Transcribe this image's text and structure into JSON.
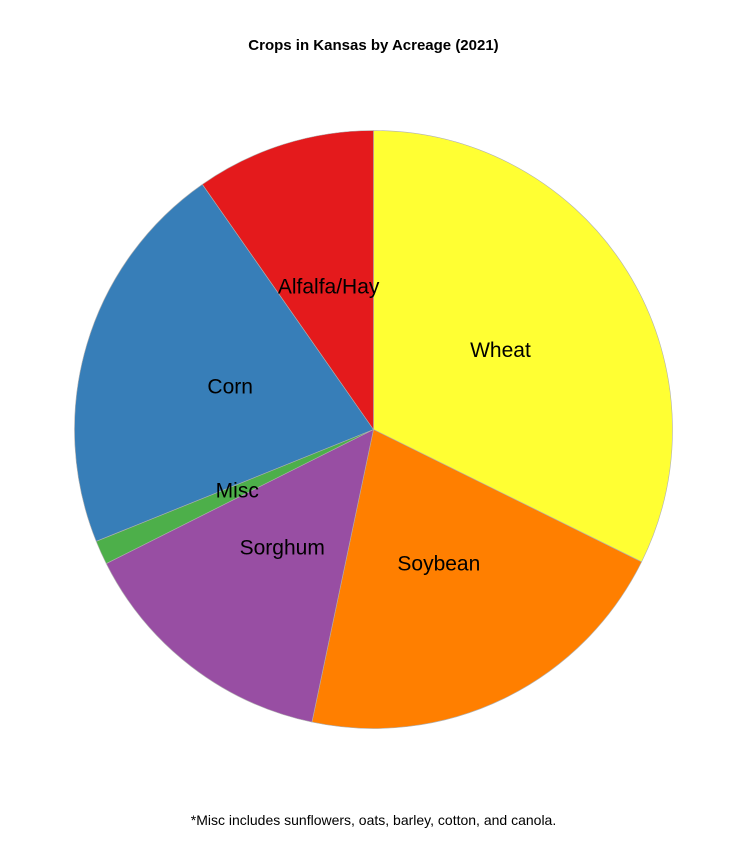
{
  "chart_data": {
    "type": "pie",
    "title": "Crops in Kansas by Acreage (2021)",
    "slices": [
      {
        "label": "Wheat",
        "value": 32.3,
        "color": "#FFFF33"
      },
      {
        "label": "Soybean",
        "value": 21.0,
        "color": "#FF7F00"
      },
      {
        "label": "Sorghum",
        "value": 14.3,
        "color": "#984EA3"
      },
      {
        "label": "Misc",
        "value": 1.3,
        "color": "#4DAF4A"
      },
      {
        "label": "Corn",
        "value": 21.4,
        "color": "#377EB8"
      },
      {
        "label": "Alfalfa/Hay",
        "value": 9.7,
        "color": "#E41A1C"
      }
    ],
    "start_angle": "12 o'clock",
    "direction": "clockwise",
    "footnote": "*Misc includes sunflowers, oats, barley, cotton, and canola."
  }
}
